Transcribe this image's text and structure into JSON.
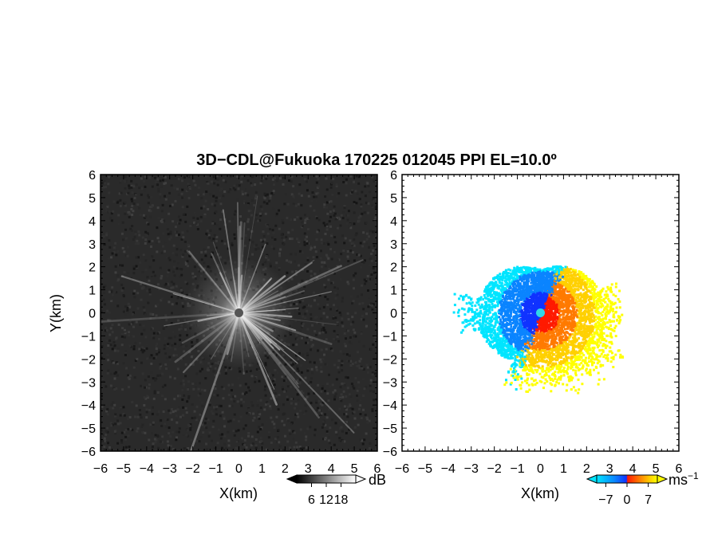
{
  "chart_data": [
    {
      "type": "heatmap",
      "title": "3D−CDL@Fukuoka 170225 012045 PPI EL=10.0º",
      "panel": "reflectivity",
      "xlabel": "X(km)",
      "ylabel": "Y(km)",
      "xlim": [
        -6,
        6
      ],
      "ylim": [
        -6,
        6
      ],
      "x_ticks": [
        -6,
        -5,
        -4,
        -3,
        -2,
        -1,
        0,
        1,
        2,
        3,
        4,
        5,
        6
      ],
      "y_ticks": [
        -6,
        -5,
        -4,
        -3,
        -2,
        -1,
        0,
        1,
        2,
        3,
        4,
        5,
        6
      ],
      "tick_labels": [
        "−6",
        "−5",
        "−4",
        "−3",
        "−2",
        "−1",
        "0",
        "1",
        "2",
        "3",
        "4",
        "5",
        "6"
      ],
      "colormap": "grayscale",
      "background_color": "#2a2a2a",
      "pattern": "bright radial spokes from radar at origin over speckle noise",
      "colorbar": {
        "unit": "dB",
        "tick_labels": [
          "6",
          "12",
          "18"
        ],
        "range": [
          0,
          24
        ],
        "extend": "both"
      }
    },
    {
      "type": "heatmap",
      "panel": "doppler-velocity",
      "xlabel": "X(km)",
      "xlim": [
        -6,
        6
      ],
      "ylim": [
        -6,
        6
      ],
      "x_ticks": [
        -6,
        -5,
        -4,
        -3,
        -2,
        -1,
        0,
        1,
        2,
        3,
        4,
        5,
        6
      ],
      "y_ticks": [
        -6,
        -5,
        -4,
        -3,
        -2,
        -1,
        0,
        1,
        2,
        3,
        4,
        5,
        6
      ],
      "tick_labels": [
        "−6",
        "−5",
        "−4",
        "−3",
        "−2",
        "−1",
        "0",
        "1",
        "2",
        "3",
        "4",
        "5",
        "6"
      ],
      "colormap": "cyan-blue-red-orange-yellow",
      "colors": [
        "#00e5ff",
        "#0a84ff",
        "#1033ff",
        "#ff1a00",
        "#ff7a00",
        "#ffd000",
        "#ffff00"
      ],
      "pattern": "westward (left) blue/cyan returns, eastward (right) red/orange/yellow returns, within about 4 km of origin",
      "colorbar": {
        "unit": "ms",
        "unit_exponent": "−1",
        "tick_labels": [
          "−7",
          "0",
          "7"
        ],
        "range": [
          -10,
          10
        ],
        "extend": "both"
      }
    }
  ]
}
